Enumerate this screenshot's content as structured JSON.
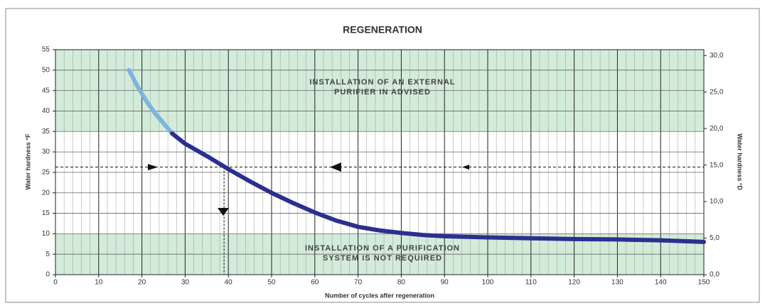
{
  "chart_data": {
    "type": "line",
    "title": "REGENERATION",
    "x_label": "Number of cycles after regeneration",
    "y_label": "Water hardness °F",
    "y2_label": "Water hardness °D",
    "xlim": [
      0,
      150
    ],
    "xticks": [
      0,
      10,
      20,
      30,
      40,
      50,
      60,
      70,
      80,
      90,
      100,
      110,
      120,
      130,
      140,
      150
    ],
    "ylim": [
      0,
      55
    ],
    "yticks": [
      0,
      5,
      10,
      15,
      20,
      25,
      30,
      35,
      40,
      45,
      50,
      55
    ],
    "y2lim": [
      0,
      30.8
    ],
    "y2ticks": [
      {
        "value": 0,
        "label": "0,0"
      },
      {
        "value": 5,
        "label": "5,0"
      },
      {
        "value": 10,
        "label": "10,0"
      },
      {
        "value": 15,
        "label": "15,0"
      },
      {
        "value": 20,
        "label": "20,0"
      },
      {
        "value": 25,
        "label": "25,0"
      },
      {
        "value": 30,
        "label": "30,0"
      }
    ],
    "grid": true,
    "bands": [
      {
        "y0": 35,
        "y1": 55,
        "color": "#d3ebd9"
      },
      {
        "y0": 0,
        "y1": 10,
        "color": "#d3ebd9"
      }
    ],
    "reference": {
      "x": 39,
      "y": 26.3
    },
    "annotations": [
      [
        "INSTALLATION OF AN EXTERNAL",
        "PURIFIER IN ADVISED"
      ],
      [
        "INSTALLATION OF A PURIFICATION",
        "SYSTEM IS NOT REQUIRED"
      ]
    ],
    "series": [
      {
        "color": "#7fb3e0",
        "x": [
          17,
          19,
          21,
          23,
          25,
          27
        ],
        "values": [
          50,
          46,
          42.5,
          39.5,
          37,
          34.5
        ]
      },
      {
        "color": "#2b2f8f",
        "x": [
          27,
          30,
          35,
          40,
          45,
          50,
          55,
          60,
          65,
          70,
          75,
          80,
          85,
          90,
          100,
          110,
          120,
          130,
          140,
          150
        ],
        "values": [
          34.5,
          32,
          29,
          25.8,
          22.8,
          20,
          17.5,
          15.2,
          13.2,
          11.7,
          10.8,
          10.2,
          9.7,
          9.4,
          9.1,
          8.9,
          8.7,
          8.6,
          8.4,
          8
        ]
      }
    ]
  }
}
